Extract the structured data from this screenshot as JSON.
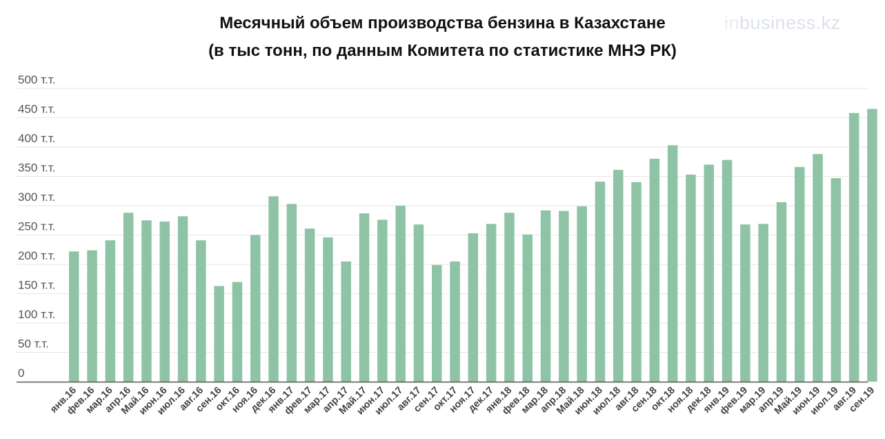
{
  "logo": {
    "prefix": "in",
    "rest": "business.kz"
  },
  "chart_data": {
    "type": "bar",
    "title": "Месячный объем производства бензина в Казахстане",
    "subtitle": "(в тыс тонн, по данным Комитета по статистике МНЭ РК)",
    "xlabel": "",
    "ylabel": "",
    "ylim": [
      0,
      500
    ],
    "grid": true,
    "bar_color": "#8fc3a5",
    "yticks": [
      {
        "value": 0,
        "label": "0"
      },
      {
        "value": 50,
        "label": "50 т.т."
      },
      {
        "value": 100,
        "label": "100 т.т."
      },
      {
        "value": 150,
        "label": "150 т.т."
      },
      {
        "value": 200,
        "label": "200 т.т."
      },
      {
        "value": 250,
        "label": "250 т.т."
      },
      {
        "value": 300,
        "label": "300 т.т."
      },
      {
        "value": 350,
        "label": "350 т.т."
      },
      {
        "value": 400,
        "label": "400 т.т."
      },
      {
        "value": 450,
        "label": "450 т.т."
      },
      {
        "value": 500,
        "label": "500 т.т."
      }
    ],
    "categories": [
      "янв.16",
      "фев.16",
      "мар.16",
      "апр.16",
      "Май.16",
      "июн.16",
      "июл.16",
      "авг.16",
      "сен.16",
      "окт.16",
      "ноя.16",
      "дек.16",
      "янв.17",
      "фев.17",
      "мар.17",
      "апр.17",
      "Май.17",
      "июн.17",
      "июл.17",
      "авг.17",
      "сен.17",
      "окт.17",
      "ноя.17",
      "дек.17",
      "янв.18",
      "фев.18",
      "мар.18",
      "апр.18",
      "Май.18",
      "июн.18",
      "июл.18",
      "авг.18",
      "сен.18",
      "окт.18",
      "ноя.18",
      "дек.18",
      "янв.19",
      "фев.19",
      "мар.19",
      "апр.19",
      "Май.19",
      "июн.19",
      "июл.19",
      "авг.19",
      "сен.19"
    ],
    "values": [
      222,
      224,
      241,
      288,
      275,
      273,
      282,
      241,
      163,
      170,
      250,
      316,
      303,
      261,
      246,
      205,
      287,
      276,
      300,
      268,
      199,
      205,
      253,
      269,
      288,
      251,
      292,
      291,
      299,
      341,
      361,
      340,
      380,
      403,
      353,
      370,
      378,
      268,
      269,
      306,
      366,
      388,
      347,
      458,
      465
    ]
  }
}
